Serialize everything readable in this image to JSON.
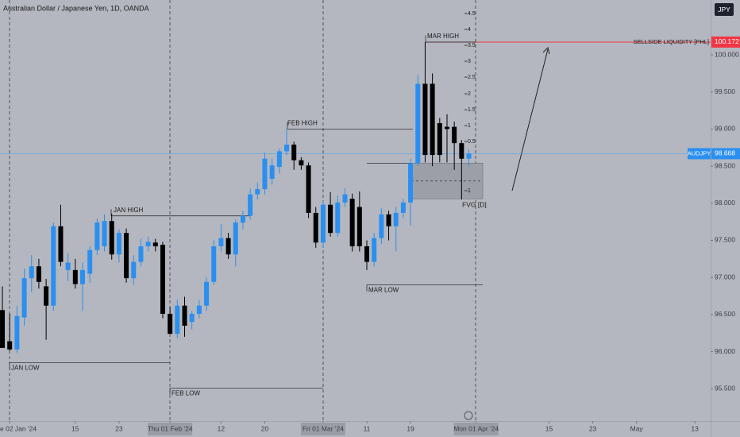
{
  "chart_data": {
    "type": "candlestick",
    "title": "Australian Dollar / Japanese Yen, 1D, OANDA",
    "currency": "JPY",
    "symbol": "AUDJPY",
    "last_price": 98.668,
    "colors": {
      "up": "#2a8ff0",
      "down": "#000000"
    },
    "candles": {
      "open": [
        96.56,
        96.14,
        96.03,
        96.46,
        96.99,
        97.15,
        96.88,
        96.62,
        97.69,
        97.1,
        97.1,
        96.91,
        97.05,
        97.37,
        97.42,
        97.76,
        97.31,
        97.6,
        96.99,
        97.21,
        97.42,
        97.47,
        97.44,
        96.51,
        96.24,
        96.62,
        96.4,
        96.51,
        96.62,
        96.94,
        97.42,
        97.53,
        97.31,
        97.74,
        97.83,
        98.12,
        98.19,
        98.33,
        98.49,
        98.7,
        98.79,
        98.58,
        98.51,
        97.87,
        97.47,
        97.98,
        97.6,
        98.01,
        98.06,
        97.95,
        97.42,
        97.21,
        97.53,
        97.85,
        97.69,
        97.87,
        98.01,
        98.54,
        99.61,
        99.61,
        99.08,
        99.03,
        99.03,
        98.81,
        98.6
      ],
      "high": [
        96.88,
        96.51,
        96.62,
        97.12,
        97.3,
        97.25,
        96.98,
        97.74,
        97.98,
        97.33,
        97.25,
        97.2,
        97.42,
        97.79,
        97.85,
        97.86,
        97.65,
        97.66,
        97.3,
        97.52,
        97.55,
        97.52,
        97.48,
        96.6,
        96.7,
        96.74,
        96.55,
        96.7,
        97.0,
        97.5,
        97.72,
        97.6,
        97.78,
        97.9,
        98.2,
        98.28,
        98.68,
        98.6,
        98.74,
        99.0,
        98.83,
        98.62,
        98.55,
        97.95,
        98.03,
        98.15,
        98.1,
        98.2,
        98.13,
        98.16,
        97.5,
        97.6,
        97.93,
        97.9,
        97.95,
        98.06,
        98.6,
        99.73,
        100.172,
        99.75,
        99.15,
        99.2,
        99.1,
        98.85,
        98.72
      ],
      "low": [
        96.05,
        96.01,
        95.98,
        96.35,
        96.8,
        96.85,
        96.16,
        96.55,
        97.15,
        96.95,
        96.85,
        96.55,
        96.93,
        97.3,
        97.35,
        97.24,
        97.2,
        96.93,
        96.9,
        97.15,
        97.35,
        97.35,
        96.45,
        96.24,
        96.18,
        96.2,
        96.3,
        96.45,
        96.55,
        96.9,
        97.35,
        97.25,
        97.15,
        97.65,
        97.78,
        98.05,
        98.12,
        98.25,
        98.4,
        98.65,
        98.45,
        98.45,
        97.8,
        97.4,
        97.4,
        97.55,
        97.55,
        97.95,
        97.35,
        97.35,
        97.1,
        97.15,
        97.45,
        97.5,
        97.35,
        97.8,
        97.7,
        98.5,
        98.55,
        98.5,
        98.55,
        98.55,
        98.45,
        98.05,
        98.5
      ],
      "close": [
        96.05,
        96.03,
        96.48,
        96.99,
        97.15,
        96.94,
        96.62,
        97.69,
        97.21,
        97.2,
        96.91,
        97.1,
        97.37,
        97.74,
        97.76,
        97.31,
        97.6,
        96.99,
        97.21,
        97.42,
        97.48,
        97.42,
        96.51,
        96.24,
        96.62,
        96.35,
        96.51,
        96.62,
        96.94,
        97.42,
        97.53,
        97.31,
        97.74,
        97.83,
        98.12,
        98.19,
        98.6,
        98.51,
        98.7,
        98.79,
        98.58,
        98.51,
        97.87,
        97.47,
        97.98,
        97.6,
        98.01,
        98.12,
        97.42,
        97.42,
        97.21,
        97.53,
        97.85,
        97.69,
        97.87,
        98.01,
        98.54,
        99.61,
        98.65,
        98.65,
        98.65,
        99.0,
        98.81,
        98.6,
        98.668
      ]
    },
    "xlim": [
      -0.33,
      97.17
    ],
    "xticks": [
      {
        "value": 1,
        "label": "e 02 Jan '24"
      },
      {
        "value": 10,
        "label": "15"
      },
      {
        "value": 16,
        "label": "23"
      },
      {
        "value": 23,
        "label": "Thu 01 Feb '24"
      },
      {
        "value": 30,
        "label": "12"
      },
      {
        "value": 36,
        "label": "20"
      },
      {
        "value": 44,
        "label": "Fri 01 Mar '24"
      },
      {
        "value": 50,
        "label": "11"
      },
      {
        "value": 56,
        "label": "19"
      },
      {
        "value": 65,
        "label": "Mon 01 Apr '24"
      },
      {
        "value": 75,
        "label": "15"
      },
      {
        "value": 81,
        "label": "23"
      },
      {
        "value": 87,
        "label": "May"
      },
      {
        "value": 95,
        "label": "13"
      }
    ],
    "ylim": [
      95.064,
      100.739
    ],
    "yticks": [
      {
        "value": 95.5,
        "label": "95.500"
      },
      {
        "value": 96,
        "label": "96.000"
      },
      {
        "value": 96.5,
        "label": "96.500"
      },
      {
        "value": 97,
        "label": "97.000"
      },
      {
        "value": 97.5,
        "label": "97.500"
      },
      {
        "value": 98,
        "label": "98.000"
      },
      {
        "value": 98.5,
        "label": "98.500"
      },
      {
        "value": 99,
        "label": "99.000"
      },
      {
        "value": 99.5,
        "label": "99.500"
      },
      {
        "value": 100,
        "label": "100.000"
      }
    ],
    "levels": [
      {
        "label": "JAN HIGH",
        "value": 97.83
      },
      {
        "label": "FEB HIGH",
        "value": 99.0
      },
      {
        "label": "MAR HIGH",
        "value": 100.172
      },
      {
        "label": "JAN LOW",
        "value": 95.85
      },
      {
        "label": "FEB LOW",
        "value": 95.51
      },
      {
        "label": "MAR LOW",
        "value": 96.9
      }
    ],
    "liquidity": {
      "label": "SELLSIDE LIQUIDITY [PHL]",
      "value": 100.172,
      "color": "#f23645"
    },
    "fvg": {
      "label": "FVG [D]",
      "top": 98.54,
      "mid": 98.3,
      "bottom": 98.06
    },
    "std_levels": [
      {
        "value": 4.5,
        "price": 100.557
      },
      {
        "value": 4,
        "price": 100.343
      },
      {
        "value": 3.5,
        "price": 100.128
      },
      {
        "value": 3,
        "price": 99.914
      },
      {
        "value": 2.5,
        "price": 99.7
      },
      {
        "value": 2,
        "price": 99.475
      },
      {
        "value": 1.5,
        "price": 99.26
      },
      {
        "value": 1,
        "price": 99.047
      },
      {
        "value": 0.5,
        "price": 98.833
      },
      {
        "value": 1,
        "price": 98.17
      }
    ]
  }
}
